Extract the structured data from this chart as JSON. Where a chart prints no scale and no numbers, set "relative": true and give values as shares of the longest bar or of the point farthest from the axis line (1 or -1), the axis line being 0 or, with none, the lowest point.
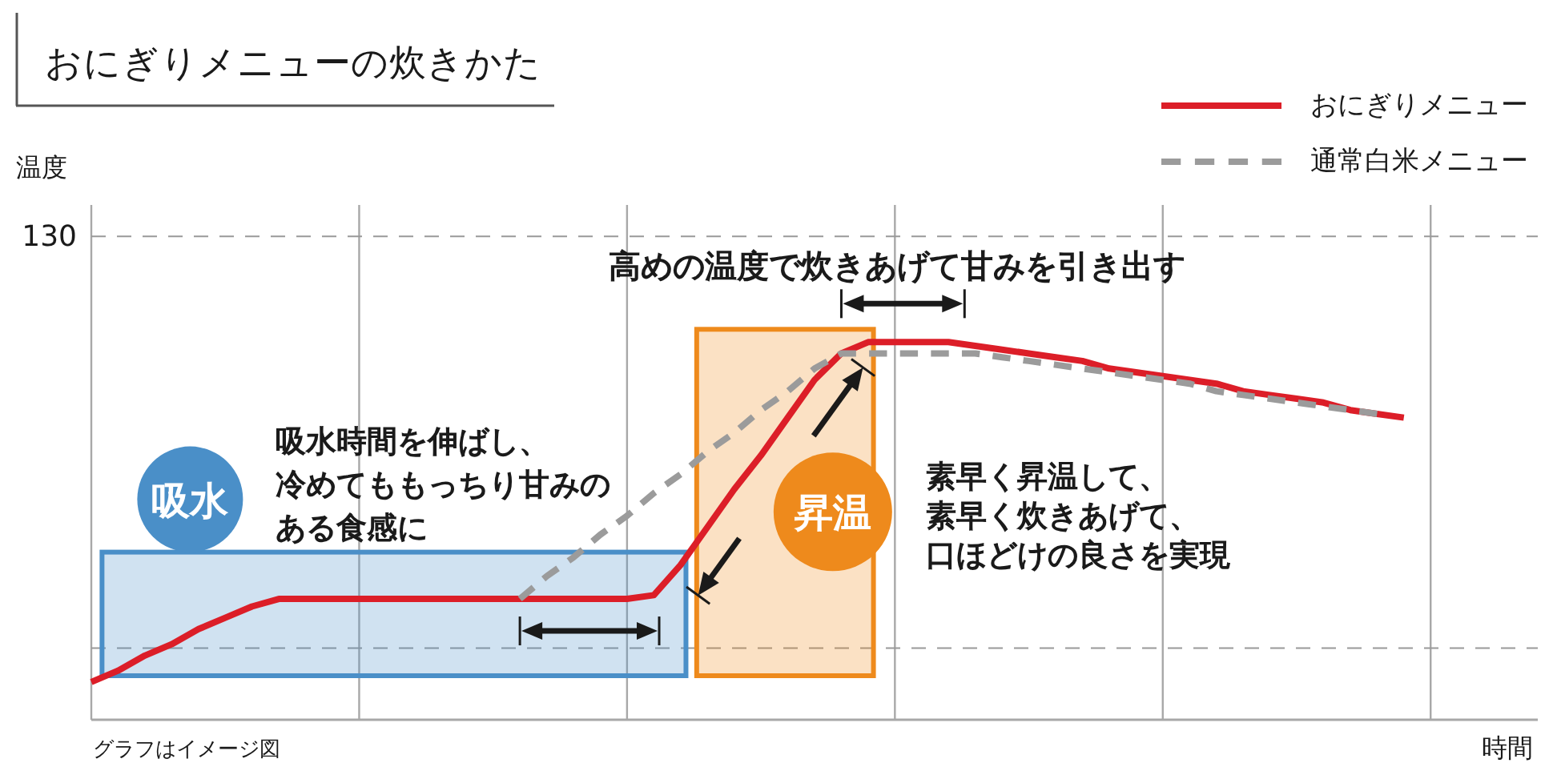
{
  "chart_data": {
    "type": "line",
    "title": "おにぎりメニューの炊きかた",
    "xlabel": "時間",
    "relative": true,
    "categories": [
      null,
      null,
      null,
      null,
      null,
      null,
      null,
      null,
      null,
      null,
      null,
      null,
      null,
      null,
      null,
      null,
      null,
      null,
      null,
      null,
      null,
      null,
      null,
      null,
      null,
      null,
      null,
      null,
      null,
      null,
      null,
      null,
      null,
      null,
      null,
      null,
      null,
      null,
      null,
      null,
      null,
      null,
      null,
      null,
      null,
      null,
      null,
      null,
      null,
      null,
      null,
      null,
      null,
      null,
      null
    ],
    "grid": "x",
    "legend": "top right",
    "series": [
      {
        "name": "おにぎりメニュー",
        "color": "#dc1e28",
        "line_style": "solid",
        "values": [
          0.1,
          0.13,
          0.17,
          0.2,
          0.24,
          0.27,
          0.3,
          0.32,
          0.32,
          0.32,
          0.32,
          0.32,
          0.32,
          0.32,
          0.32,
          0.32,
          0.32,
          0.32,
          0.32,
          0.32,
          0.32,
          0.33,
          0.41,
          0.51,
          0.61,
          0.7,
          0.8,
          0.9,
          0.97,
          1.0,
          1.0,
          1.0,
          1.0,
          0.99,
          0.98,
          0.97,
          0.96,
          0.95,
          0.93,
          0.92,
          0.91,
          0.9,
          0.89,
          0.87,
          0.86,
          0.85,
          0.84,
          0.82,
          0.81,
          0.8,
          null,
          null,
          null,
          null,
          null
        ]
      },
      {
        "name": "通常白米メニュー",
        "color": "#9b9b9b",
        "line_style": "dashed",
        "values": [
          null,
          null,
          null,
          null,
          null,
          null,
          null,
          null,
          null,
          null,
          null,
          null,
          null,
          null,
          null,
          null,
          0.32,
          0.38,
          0.43,
          0.49,
          0.54,
          0.6,
          0.65,
          0.71,
          0.76,
          0.82,
          0.87,
          0.93,
          0.97,
          0.97,
          0.97,
          0.97,
          0.97,
          0.97,
          0.96,
          0.95,
          0.94,
          0.93,
          0.92,
          0.91,
          0.9,
          0.89,
          0.87,
          0.86,
          0.85,
          0.84,
          0.83,
          0.82,
          0.81,
          null,
          null,
          null,
          null,
          null,
          null
        ]
      }
    ],
    "ref_lines": [
      {
        "axis": "y",
        "value": 1.28,
        "line_style": "dashed",
        "color": "#999999"
      },
      {
        "axis": "y",
        "value": 0.19,
        "line_style": "dashed",
        "color": "#999999"
      }
    ],
    "annotations": [
      "温度",
      "130",
      "高めの温度で炊きあげて甘みを引き出す",
      "吸水",
      "吸水時間を伸ばし、冷めてももっちり甘みのある食感に",
      "昇温",
      "素早く昇温して、素早く炊きあげて、口ほどけの良さを実現",
      "グラフはイメージ図"
    ]
  }
}
